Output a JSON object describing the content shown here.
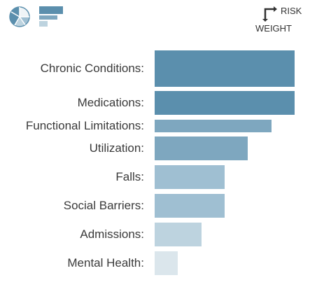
{
  "view_toggle": {
    "pie_icon": "pie-chart-icon",
    "bar_icon": "bar-chart-icon"
  },
  "sort_toggle": {
    "risk_label": "RISK",
    "weight_label": "WEIGHT",
    "icon": "sort-arrow-icon"
  },
  "colors": {
    "bar_dark": "#5b8fad",
    "bar_mid": "#7ea7bf",
    "bar_light": "#9fbfd2",
    "bar_pale": "#bdd3df",
    "bar_faint": "#dbe6ec",
    "icon_blue": "#5b8fad"
  },
  "chart_data": {
    "type": "bar",
    "orientation": "horizontal",
    "categories": [
      "Chronic Conditions:",
      "Medications:",
      "Functional Limitations:",
      "Utilization:",
      "Falls:",
      "Social Barriers:",
      "Admissions:",
      "Mental Health:"
    ],
    "values": [
      6,
      6,
      5,
      4,
      3,
      3,
      2,
      1
    ],
    "xlim": [
      0,
      6
    ]
  }
}
